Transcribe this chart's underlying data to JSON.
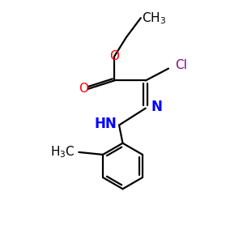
{
  "background": "#ffffff",
  "bond_color": "#000000",
  "bond_lw": 1.6,
  "atom_colors": {
    "O": "#ff0000",
    "N": "#0000ff",
    "Cl": "#880088",
    "C": "#000000"
  },
  "font_size": 11,
  "fig_size": [
    3.0,
    3.0
  ],
  "dpi": 100
}
